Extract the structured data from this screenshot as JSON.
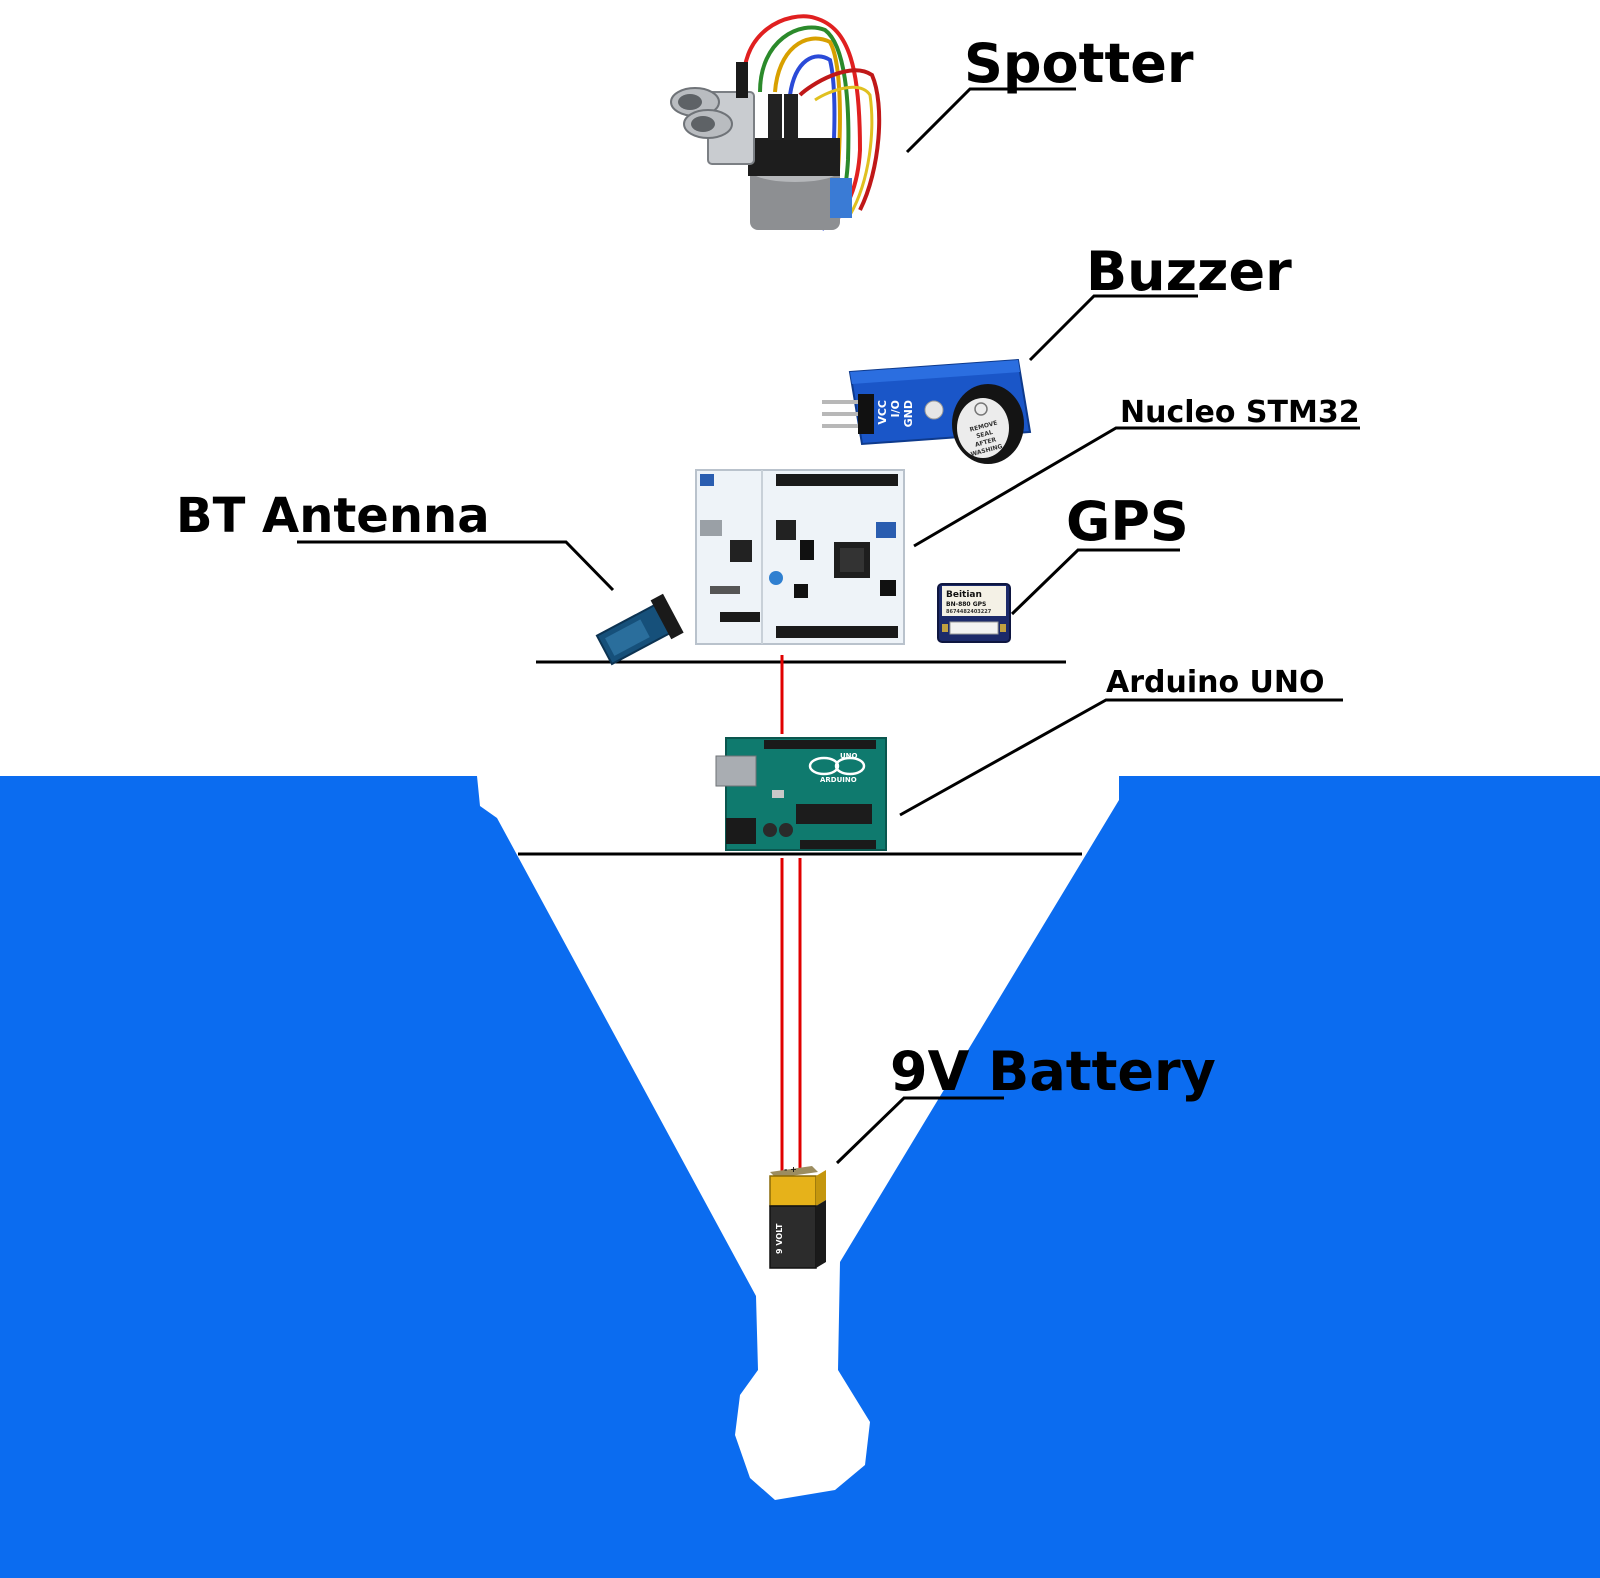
{
  "labels": {
    "spotter": "Spotter",
    "buzzer": "Buzzer",
    "nucleo": "Nucleo STM32",
    "bt_antenna": "BT Antenna",
    "gps": "GPS",
    "arduino": "Arduino UNO",
    "battery": "9V Battery"
  },
  "component_text": {
    "buzzer_pins": [
      "VCC",
      "I/O",
      "GND"
    ],
    "buzzer_seal": [
      "REMOVE",
      "SEAL",
      "AFTER",
      "WASHING"
    ],
    "gps_brand": "Beitian",
    "gps_model": "BN-880 GPS",
    "gps_serial": "8674482403227",
    "arduino_brand": "ARDUINO",
    "arduino_model": "UNO",
    "battery_text": "9 VOLT",
    "battery_terminals": "- +"
  },
  "colors": {
    "water": "#0b6cf0",
    "wire": "#e00000",
    "background": "#ffffff",
    "board_green": "#0f7a6e",
    "nucleo_board": "#eef3f8",
    "buzzer_board": "#1a56c8"
  }
}
